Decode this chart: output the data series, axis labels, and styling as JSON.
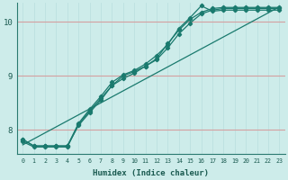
{
  "xlabel": "Humidex (Indice chaleur)",
  "ylabel": "",
  "bg_color": "#cdecea",
  "line_color": "#1a7a6e",
  "grid_color_h": "#d4a0a0",
  "grid_color_v": "#b8dede",
  "xlim": [
    -0.5,
    23.5
  ],
  "ylim": [
    7.55,
    10.35
  ],
  "xticks": [
    0,
    1,
    2,
    3,
    4,
    5,
    6,
    7,
    8,
    9,
    10,
    11,
    12,
    13,
    14,
    15,
    16,
    17,
    18,
    19,
    20,
    21,
    22,
    23
  ],
  "yticks": [
    8,
    9,
    10
  ],
  "series": [
    {
      "has_markers": false,
      "x": [
        0,
        23
      ],
      "y": [
        7.72,
        10.28
      ]
    },
    {
      "has_markers": true,
      "x": [
        0,
        1,
        2,
        3,
        4,
        5,
        6,
        7,
        8,
        9,
        10,
        11,
        12,
        13,
        14,
        15,
        16,
        17,
        18,
        19,
        20,
        21,
        22,
        23
      ],
      "y": [
        7.78,
        7.68,
        7.68,
        7.68,
        7.68,
        8.1,
        8.35,
        8.58,
        8.82,
        9.0,
        9.08,
        9.18,
        9.32,
        9.6,
        9.85,
        10.05,
        10.18,
        10.25,
        10.27,
        10.27,
        10.27,
        10.27,
        10.27,
        10.27
      ]
    },
    {
      "has_markers": true,
      "x": [
        0,
        1,
        2,
        3,
        4,
        5,
        6,
        7,
        8,
        9,
        10,
        11,
        12,
        13,
        14,
        15,
        16,
        17,
        18,
        19,
        20,
        21,
        22,
        23
      ],
      "y": [
        7.82,
        7.7,
        7.7,
        7.7,
        7.7,
        8.12,
        8.38,
        8.62,
        8.88,
        9.02,
        9.1,
        9.22,
        9.38,
        9.58,
        9.88,
        10.08,
        10.3,
        10.2,
        10.22,
        10.22,
        10.22,
        10.22,
        10.22,
        10.22
      ]
    },
    {
      "has_markers": true,
      "x": [
        0,
        1,
        2,
        3,
        4,
        5,
        6,
        7,
        8,
        9,
        10,
        11,
        12,
        13,
        14,
        15,
        16,
        17,
        18,
        19,
        20,
        21,
        22,
        23
      ],
      "y": [
        7.82,
        7.7,
        7.7,
        7.7,
        7.7,
        8.08,
        8.32,
        8.55,
        8.82,
        8.95,
        9.05,
        9.18,
        9.3,
        9.52,
        9.78,
        9.98,
        10.15,
        10.22,
        10.25,
        10.25,
        10.25,
        10.25,
        10.25,
        10.25
      ]
    }
  ]
}
